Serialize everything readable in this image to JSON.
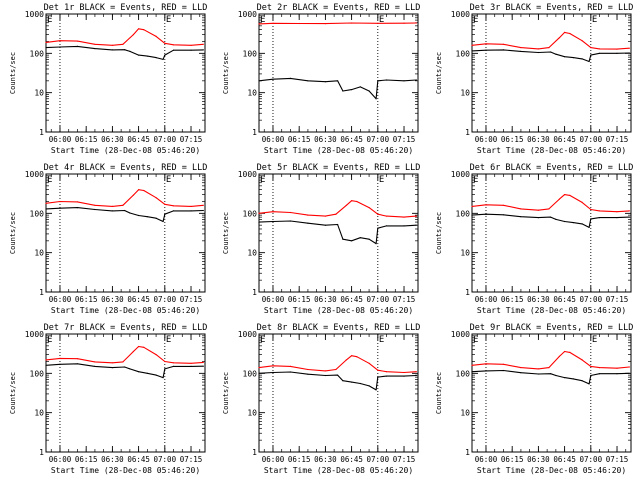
{
  "figure": {
    "colors": {
      "events": "#000000",
      "lld": "#ff0000",
      "axes": "#000000",
      "background": "#ffffff"
    }
  },
  "chart_data": [
    {
      "type": "line",
      "title": "Det 1r BLACK = Events, RED = LLD",
      "xlabel": "Start Time (28-Dec-08 05:46:20)",
      "ylabel": "Counts/sec",
      "yscale": "log",
      "ylim": [
        1,
        1000
      ],
      "xlim": [
        "05:52",
        "07:23"
      ],
      "x_ticks": [
        "06:00",
        "06:15",
        "06:30",
        "06:45",
        "07:00",
        "07:15"
      ],
      "y_ticks": [
        "1",
        "10",
        "100",
        "1000"
      ],
      "dotted_vlines": [
        "06:00",
        "07:00"
      ],
      "markers": [
        {
          "label": "E",
          "x": [
            "05:52",
            "07:00"
          ]
        }
      ],
      "series": [
        {
          "name": "Events",
          "color": "#000000",
          "x": [
            "05:52",
            "06:00",
            "06:10",
            "06:20",
            "06:30",
            "06:37",
            "06:40",
            "06:45",
            "06:50",
            "06:55",
            "06:59",
            "07:00",
            "07:05",
            "07:15",
            "07:22"
          ],
          "values": [
            140,
            145,
            150,
            132,
            122,
            124,
            112,
            90,
            85,
            78,
            70,
            90,
            120,
            120,
            122
          ]
        },
        {
          "name": "LLD",
          "color": "#ff0000",
          "x": [
            "05:52",
            "06:00",
            "06:10",
            "06:20",
            "06:30",
            "06:36",
            "06:42",
            "06:45",
            "06:48",
            "06:55",
            "07:00",
            "07:05",
            "07:15",
            "07:22"
          ],
          "values": [
            190,
            210,
            205,
            170,
            160,
            170,
            300,
            420,
            400,
            270,
            180,
            165,
            160,
            170
          ]
        }
      ]
    },
    {
      "type": "line",
      "title": "Det 2r BLACK = Events, RED = LLD",
      "xlabel": "Start Time (28-Dec-08 05:46:20)",
      "ylabel": "Counts/sec",
      "yscale": "log",
      "ylim": [
        1,
        1000
      ],
      "xlim": [
        "05:52",
        "07:23"
      ],
      "x_ticks": [
        "06:00",
        "06:15",
        "06:30",
        "06:45",
        "07:00",
        "07:15"
      ],
      "y_ticks": [
        "1",
        "10",
        "100",
        "1000"
      ],
      "dotted_vlines": [
        "06:00",
        "07:00"
      ],
      "markers": [
        {
          "label": "E",
          "x": [
            "05:52",
            "07:00"
          ]
        }
      ],
      "series": [
        {
          "name": "Events",
          "color": "#000000",
          "x": [
            "05:52",
            "06:00",
            "06:10",
            "06:20",
            "06:30",
            "06:37",
            "06:40",
            "06:45",
            "06:50",
            "06:55",
            "06:59",
            "07:00",
            "07:05",
            "07:15",
            "07:22"
          ],
          "values": [
            20,
            22,
            23,
            20,
            19,
            20,
            11,
            12,
            14,
            11,
            7,
            20,
            21,
            20,
            21
          ]
        },
        {
          "name": "LLD",
          "color": "#ff0000",
          "x": [
            "05:52",
            "06:00",
            "06:15",
            "06:30",
            "06:45",
            "07:00",
            "07:15",
            "07:22"
          ],
          "values": [
            560,
            580,
            575,
            570,
            590,
            580,
            585,
            590
          ]
        }
      ]
    },
    {
      "type": "line",
      "title": "Det 3r BLACK = Events, RED = LLD",
      "xlabel": "Start Time (28-Dec-08 05:46:20)",
      "ylabel": "Counts/sec",
      "yscale": "log",
      "ylim": [
        1,
        1000
      ],
      "xlim": [
        "05:52",
        "07:23"
      ],
      "x_ticks": [
        "06:00",
        "06:15",
        "06:30",
        "06:45",
        "07:00",
        "07:15"
      ],
      "y_ticks": [
        "1",
        "10",
        "100",
        "1000"
      ],
      "dotted_vlines": [
        "06:00",
        "07:00"
      ],
      "markers": [
        {
          "label": "E",
          "x": [
            "05:52",
            "07:00"
          ]
        }
      ],
      "series": [
        {
          "name": "Events",
          "color": "#000000",
          "x": [
            "05:52",
            "06:00",
            "06:10",
            "06:20",
            "06:30",
            "06:37",
            "06:40",
            "06:45",
            "06:50",
            "06:55",
            "06:59",
            "07:00",
            "07:05",
            "07:15",
            "07:22"
          ],
          "values": [
            115,
            120,
            122,
            112,
            105,
            108,
            95,
            82,
            78,
            72,
            62,
            90,
            100,
            100,
            102
          ]
        },
        {
          "name": "LLD",
          "color": "#ff0000",
          "x": [
            "05:52",
            "06:00",
            "06:10",
            "06:20",
            "06:30",
            "06:36",
            "06:42",
            "06:45",
            "06:48",
            "06:55",
            "07:00",
            "07:05",
            "07:15",
            "07:22"
          ],
          "values": [
            160,
            175,
            170,
            140,
            130,
            140,
            250,
            340,
            320,
            210,
            140,
            130,
            128,
            135
          ]
        }
      ]
    },
    {
      "type": "line",
      "title": "Det 4r BLACK = Events, RED = LLD",
      "xlabel": "Start Time (28-Dec-08 05:46:20)",
      "ylabel": "Counts/sec",
      "yscale": "log",
      "ylim": [
        1,
        1000
      ],
      "xlim": [
        "05:52",
        "07:23"
      ],
      "x_ticks": [
        "06:00",
        "06:15",
        "06:30",
        "06:45",
        "07:00",
        "07:15"
      ],
      "y_ticks": [
        "1",
        "10",
        "100",
        "1000"
      ],
      "dotted_vlines": [
        "06:00",
        "07:00"
      ],
      "markers": [
        {
          "label": "E",
          "x": [
            "05:52",
            "07:00"
          ]
        }
      ],
      "series": [
        {
          "name": "Events",
          "color": "#000000",
          "x": [
            "05:52",
            "06:00",
            "06:10",
            "06:20",
            "06:30",
            "06:37",
            "06:40",
            "06:45",
            "06:50",
            "06:55",
            "06:59",
            "07:00",
            "07:05",
            "07:15",
            "07:22"
          ],
          "values": [
            130,
            135,
            140,
            125,
            115,
            118,
            102,
            88,
            82,
            75,
            62,
            95,
            115,
            115,
            118
          ]
        },
        {
          "name": "LLD",
          "color": "#ff0000",
          "x": [
            "05:52",
            "06:00",
            "06:10",
            "06:20",
            "06:30",
            "06:36",
            "06:42",
            "06:45",
            "06:48",
            "06:55",
            "07:00",
            "07:05",
            "07:15",
            "07:22"
          ],
          "values": [
            180,
            200,
            195,
            160,
            150,
            160,
            290,
            400,
            380,
            250,
            170,
            155,
            150,
            160
          ]
        }
      ]
    },
    {
      "type": "line",
      "title": "Det 5r BLACK = Events, RED = LLD",
      "xlabel": "Start Time (28-Dec-08 05:46:20)",
      "ylabel": "Counts/sec",
      "yscale": "log",
      "ylim": [
        1,
        1000
      ],
      "xlim": [
        "05:52",
        "07:23"
      ],
      "x_ticks": [
        "06:00",
        "06:15",
        "06:30",
        "06:45",
        "07:00",
        "07:15"
      ],
      "y_ticks": [
        "1",
        "10",
        "100",
        "1000"
      ],
      "dotted_vlines": [
        "06:00",
        "07:00"
      ],
      "markers": [
        {
          "label": "E",
          "x": [
            "05:52",
            "07:00"
          ]
        }
      ],
      "series": [
        {
          "name": "Events",
          "color": "#000000",
          "x": [
            "05:52",
            "06:00",
            "06:10",
            "06:20",
            "06:30",
            "06:37",
            "06:40",
            "06:45",
            "06:50",
            "06:55",
            "06:59",
            "07:00",
            "07:05",
            "07:15",
            "07:22"
          ],
          "values": [
            60,
            62,
            64,
            56,
            50,
            52,
            22,
            20,
            24,
            22,
            17,
            42,
            48,
            48,
            50
          ]
        },
        {
          "name": "LLD",
          "color": "#ff0000",
          "x": [
            "05:52",
            "06:00",
            "06:10",
            "06:20",
            "06:30",
            "06:36",
            "06:42",
            "06:45",
            "06:48",
            "06:55",
            "07:00",
            "07:05",
            "07:15",
            "07:22"
          ],
          "values": [
            100,
            110,
            105,
            90,
            85,
            95,
            160,
            210,
            200,
            140,
            95,
            85,
            80,
            85
          ]
        }
      ]
    },
    {
      "type": "line",
      "title": "Det 6r BLACK = Events, RED = LLD",
      "xlabel": "Start Time (28-Dec-08 05:46:20)",
      "ylabel": "Counts/sec",
      "yscale": "log",
      "ylim": [
        1,
        1000
      ],
      "xlim": [
        "05:52",
        "07:23"
      ],
      "x_ticks": [
        "06:00",
        "06:15",
        "06:30",
        "06:45",
        "07:00",
        "07:15"
      ],
      "y_ticks": [
        "1",
        "10",
        "100",
        "1000"
      ],
      "dotted_vlines": [
        "06:00",
        "07:00"
      ],
      "markers": [
        {
          "label": "E",
          "x": [
            "05:52",
            "07:00"
          ]
        }
      ],
      "series": [
        {
          "name": "Events",
          "color": "#000000",
          "x": [
            "05:52",
            "06:00",
            "06:10",
            "06:20",
            "06:30",
            "06:37",
            "06:40",
            "06:45",
            "06:50",
            "06:55",
            "06:59",
            "07:00",
            "07:05",
            "07:15",
            "07:22"
          ],
          "values": [
            90,
            95,
            92,
            82,
            78,
            80,
            70,
            62,
            58,
            54,
            44,
            72,
            78,
            78,
            80
          ]
        },
        {
          "name": "LLD",
          "color": "#ff0000",
          "x": [
            "05:52",
            "06:00",
            "06:10",
            "06:20",
            "06:30",
            "06:36",
            "06:42",
            "06:45",
            "06:48",
            "06:55",
            "07:00",
            "07:05",
            "07:15",
            "07:22"
          ],
          "values": [
            150,
            165,
            160,
            130,
            120,
            130,
            230,
            300,
            285,
            190,
            125,
            115,
            110,
            115
          ]
        }
      ]
    },
    {
      "type": "line",
      "title": "Det 7r BLACK = Events, RED = LLD",
      "xlabel": "Start Time (28-Dec-08 05:46:20)",
      "ylabel": "Counts/sec",
      "yscale": "log",
      "ylim": [
        1,
        1000
      ],
      "xlim": [
        "05:52",
        "07:23"
      ],
      "x_ticks": [
        "06:00",
        "06:15",
        "06:30",
        "06:45",
        "07:00",
        "07:15"
      ],
      "y_ticks": [
        "1",
        "10",
        "100",
        "1000"
      ],
      "dotted_vlines": [
        "06:00",
        "07:00"
      ],
      "markers": [
        {
          "label": "E",
          "x": [
            "05:52",
            "07:00"
          ]
        }
      ],
      "series": [
        {
          "name": "Events",
          "color": "#000000",
          "x": [
            "05:52",
            "06:00",
            "06:10",
            "06:20",
            "06:30",
            "06:37",
            "06:40",
            "06:45",
            "06:50",
            "06:55",
            "06:59",
            "07:00",
            "07:05",
            "07:15",
            "07:22"
          ],
          "values": [
            160,
            170,
            175,
            150,
            140,
            145,
            130,
            110,
            100,
            90,
            78,
            130,
            150,
            150,
            152
          ]
        },
        {
          "name": "LLD",
          "color": "#ff0000",
          "x": [
            "05:52",
            "06:00",
            "06:10",
            "06:20",
            "06:30",
            "06:36",
            "06:42",
            "06:45",
            "06:48",
            "06:55",
            "07:00",
            "07:05",
            "07:15",
            "07:22"
          ],
          "values": [
            220,
            240,
            235,
            195,
            185,
            195,
            360,
            480,
            460,
            300,
            200,
            185,
            180,
            190
          ]
        }
      ]
    },
    {
      "type": "line",
      "title": "Det 8r BLACK = Events, RED = LLD",
      "xlabel": "Start Time (28-Dec-08 05:46:20)",
      "ylabel": "Counts/sec",
      "yscale": "log",
      "ylim": [
        1,
        1000
      ],
      "xlim": [
        "05:52",
        "07:23"
      ],
      "x_ticks": [
        "06:00",
        "06:15",
        "06:30",
        "06:45",
        "07:00",
        "07:15"
      ],
      "y_ticks": [
        "1",
        "10",
        "100",
        "1000"
      ],
      "dotted_vlines": [
        "06:00",
        "07:00"
      ],
      "markers": [
        {
          "label": "E",
          "x": [
            "05:52",
            "07:00"
          ]
        }
      ],
      "series": [
        {
          "name": "Events",
          "color": "#000000",
          "x": [
            "05:52",
            "06:00",
            "06:10",
            "06:20",
            "06:30",
            "06:37",
            "06:40",
            "06:45",
            "06:50",
            "06:55",
            "06:59",
            "07:00",
            "07:05",
            "07:15",
            "07:22"
          ],
          "values": [
            100,
            105,
            108,
            95,
            88,
            90,
            65,
            60,
            55,
            48,
            38,
            80,
            85,
            85,
            88
          ]
        },
        {
          "name": "LLD",
          "color": "#ff0000",
          "x": [
            "05:52",
            "06:00",
            "06:10",
            "06:20",
            "06:30",
            "06:36",
            "06:42",
            "06:45",
            "06:48",
            "06:55",
            "07:00",
            "07:05",
            "07:15",
            "07:22"
          ],
          "values": [
            140,
            155,
            150,
            125,
            115,
            125,
            220,
            280,
            265,
            180,
            120,
            110,
            105,
            110
          ]
        }
      ]
    },
    {
      "type": "line",
      "title": "Det 9r BLACK = Events, RED = LLD",
      "xlabel": "Start Time (28-Dec-08 05:46:20)",
      "ylabel": "Counts/sec",
      "yscale": "log",
      "ylim": [
        1,
        1000
      ],
      "xlim": [
        "05:52",
        "07:23"
      ],
      "x_ticks": [
        "06:00",
        "06:15",
        "06:30",
        "06:45",
        "07:00",
        "07:15"
      ],
      "y_ticks": [
        "1",
        "10",
        "100",
        "1000"
      ],
      "dotted_vlines": [
        "06:00",
        "07:00"
      ],
      "markers": [
        {
          "label": "E",
          "x": [
            "05:52",
            "07:00"
          ]
        }
      ],
      "series": [
        {
          "name": "Events",
          "color": "#000000",
          "x": [
            "05:52",
            "06:00",
            "06:10",
            "06:20",
            "06:30",
            "06:37",
            "06:40",
            "06:45",
            "06:50",
            "06:55",
            "06:59",
            "07:00",
            "07:05",
            "07:15",
            "07:22"
          ],
          "values": [
            110,
            115,
            118,
            104,
            96,
            98,
            88,
            78,
            72,
            65,
            54,
            88,
            98,
            98,
            100
          ]
        },
        {
          "name": "LLD",
          "color": "#ff0000",
          "x": [
            "05:52",
            "06:00",
            "06:10",
            "06:20",
            "06:30",
            "06:36",
            "06:42",
            "06:45",
            "06:48",
            "06:55",
            "07:00",
            "07:05",
            "07:15",
            "07:22"
          ],
          "values": [
            160,
            175,
            170,
            140,
            130,
            140,
            270,
            360,
            340,
            220,
            150,
            140,
            135,
            145
          ]
        }
      ]
    }
  ]
}
